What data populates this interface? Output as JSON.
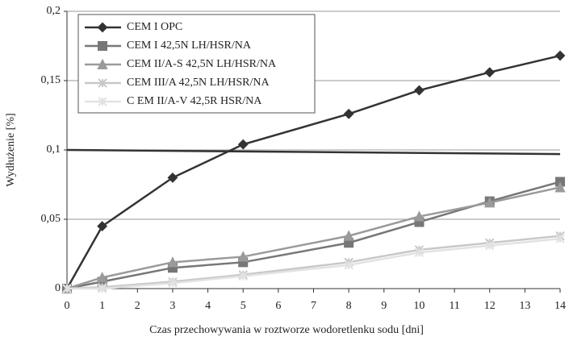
{
  "chart_data": {
    "type": "line",
    "x_label": "Czas przechowywania w roztworze wodoretlenku sodu [dni]",
    "y_label": "Wydłużenie [%]",
    "xlim": [
      0,
      14
    ],
    "xticks": [
      0,
      1,
      2,
      3,
      4,
      5,
      6,
      7,
      8,
      9,
      10,
      11,
      12,
      13,
      14
    ],
    "ylim": [
      0,
      0.2
    ],
    "yticks": [
      0,
      {
        "value": 0.05,
        "label": "0,05"
      },
      {
        "value": 0.1,
        "label": "0,1"
      },
      {
        "value": 0.15,
        "label": "0,15"
      },
      {
        "value": 0.2,
        "label": "0,2"
      }
    ],
    "grid": true,
    "x": [
      0,
      1,
      3,
      5,
      8,
      10,
      12,
      14
    ],
    "series": [
      {
        "name": "CEM I OPC",
        "color": "#333333",
        "marker": "diamond",
        "values": [
          0,
          0.045,
          0.08,
          0.104,
          0.126,
          0.143,
          0.156,
          0.168
        ]
      },
      {
        "name": "CEM I 42,5N  LH/HSR/NA",
        "color": "#777777",
        "marker": "square",
        "values": [
          0,
          0.005,
          0.015,
          0.019,
          0.033,
          0.048,
          0.063,
          0.077
        ]
      },
      {
        "name": "CEM II/A-S 42,5N LH/HSR/NA",
        "color": "#9a9a9a",
        "marker": "triangle",
        "values": [
          0,
          0.008,
          0.019,
          0.023,
          0.038,
          0.052,
          0.062,
          0.073
        ]
      },
      {
        "name": "CEM III/A 42,5N LH/HSR/NA",
        "color": "#c8c8c8",
        "marker": "cross",
        "values": [
          0,
          0.001,
          0.005,
          0.01,
          0.019,
          0.028,
          0.033,
          0.038
        ]
      },
      {
        "name": "C EM II/A-V 42,5R HSR/NA",
        "color": "#e2e2e2",
        "marker": "star",
        "values": [
          0,
          0,
          0.004,
          0.009,
          0.017,
          0.026,
          0.031,
          0.036
        ]
      }
    ],
    "reference_line": {
      "x": [
        0,
        14
      ],
      "values": [
        0.1,
        0.097
      ],
      "color": "#333333"
    }
  }
}
